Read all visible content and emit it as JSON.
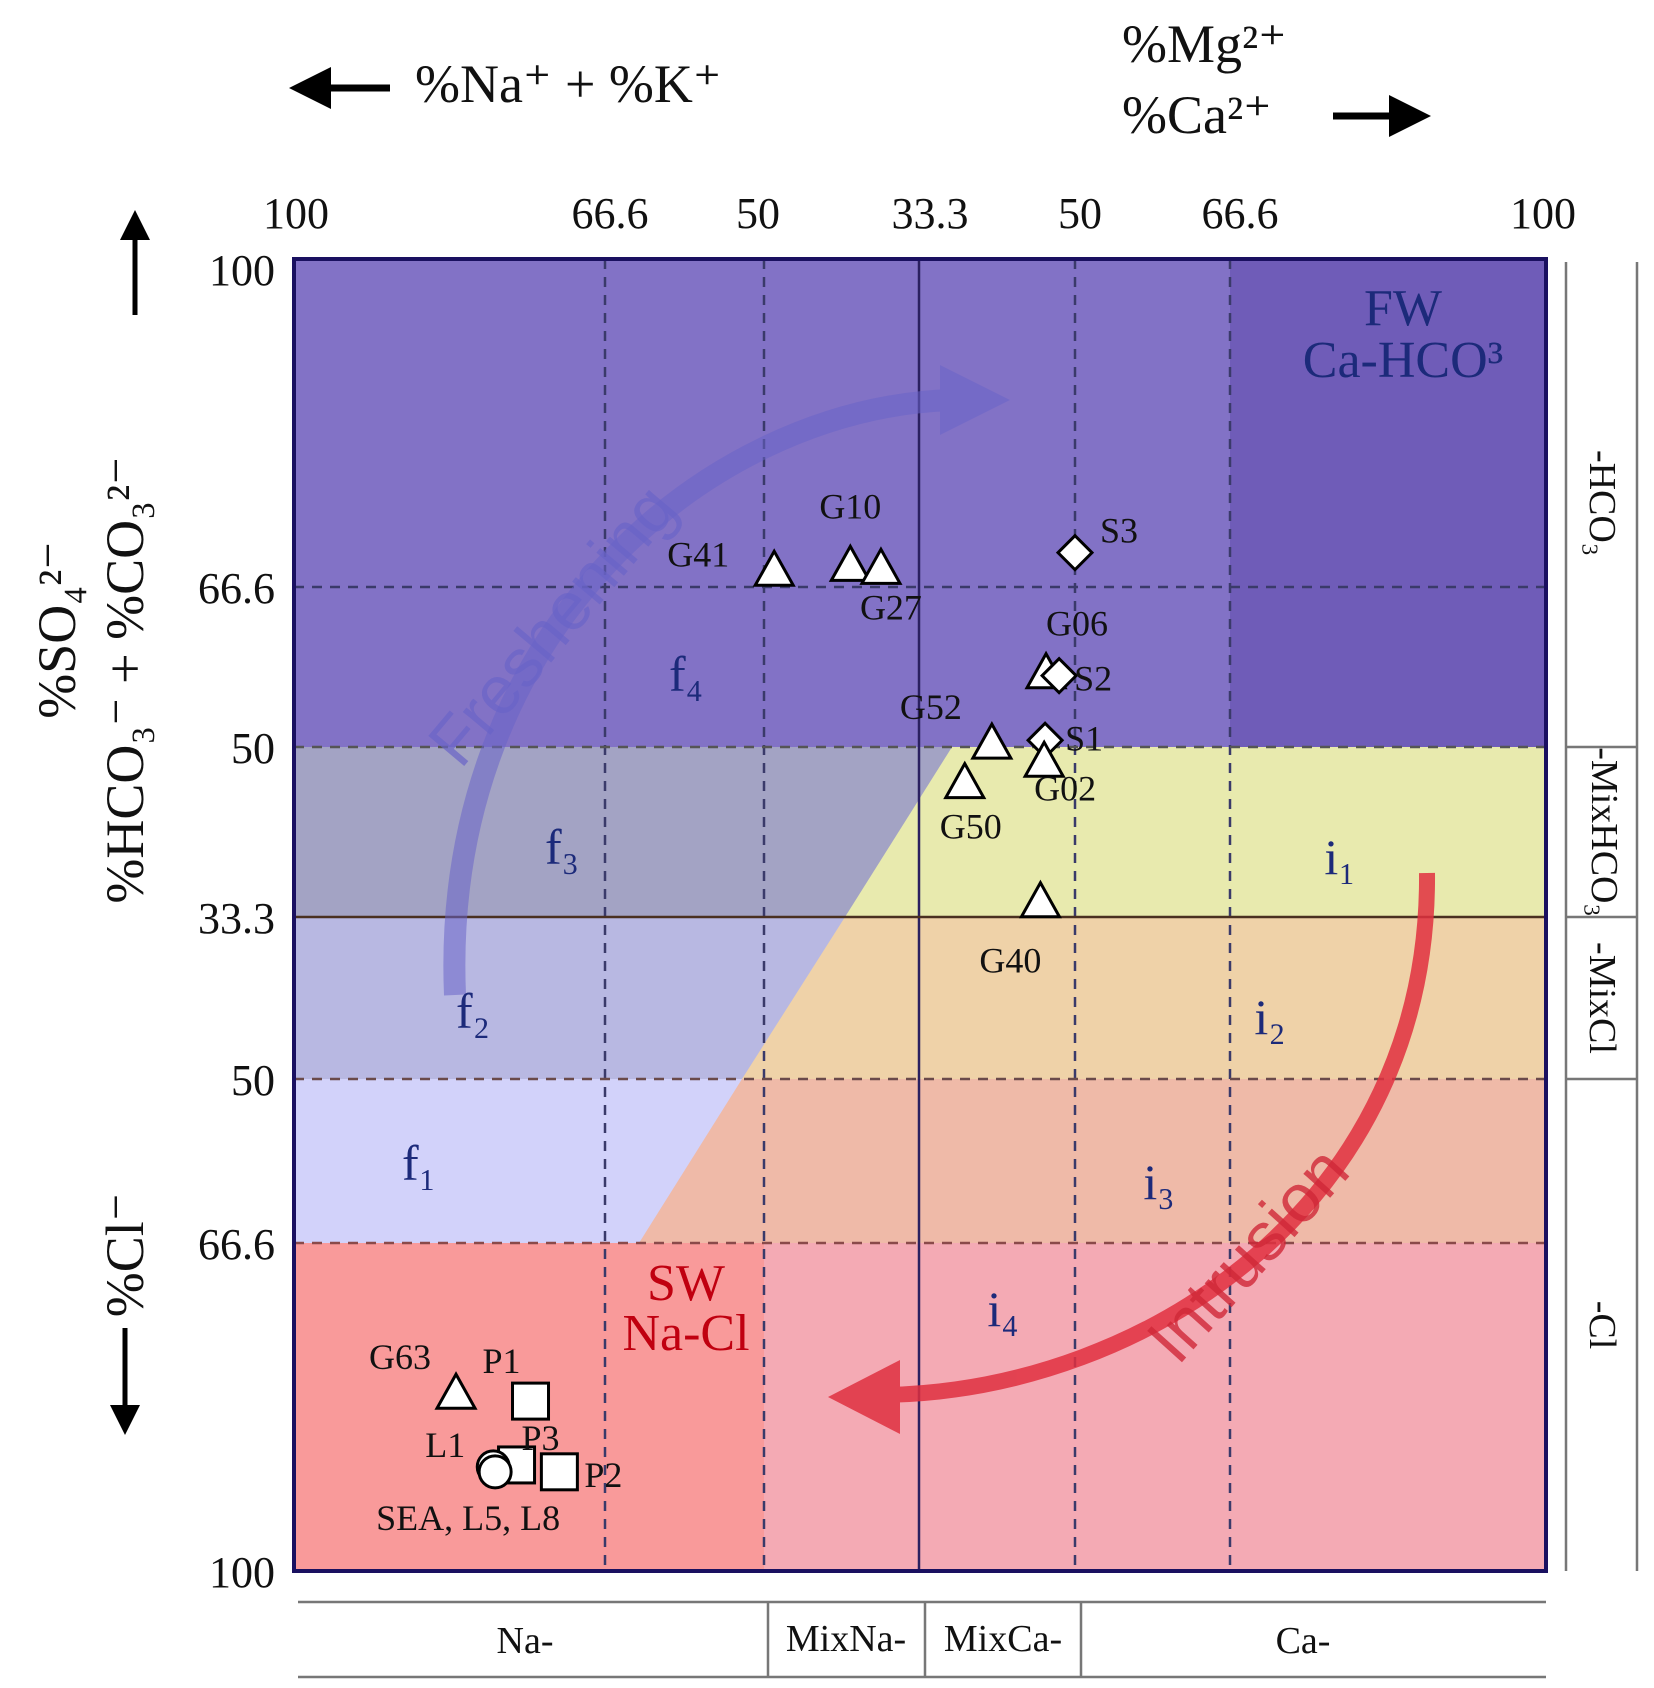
{
  "chart_data": {
    "type": "scatter",
    "x_axis": {
      "label_left": "%Na⁺ + %K⁺",
      "label_right_top": "%Mg²⁺",
      "label_right_bottom": "%Ca²⁺",
      "tick_labels": [
        "100",
        "66.6",
        "50",
        "33.3",
        "50",
        "66.6",
        "100"
      ]
    },
    "y_axis": {
      "label_top_outer": "%SO₄²⁻",
      "label_top_inner": "%HCO₃⁻ + %CO₃²⁻",
      "label_bottom": "%Cl⁻",
      "tick_labels": [
        "100",
        "66.6",
        "50",
        "33.3",
        "50",
        "66.6",
        "100"
      ]
    },
    "facies_right": [
      "-HCO₃",
      "-MixHCO₃",
      "-MixCl",
      "-Cl"
    ],
    "facies_bottom": [
      "Na-",
      "MixNa-",
      "MixCa-",
      "Ca-"
    ],
    "zones": {
      "fw_line1": "FW",
      "fw_line2": "Ca-HCO³",
      "sw_line1": "SW",
      "sw_line2": "Na-Cl",
      "f": [
        "f₁",
        "f₂",
        "f₃",
        "f₄"
      ],
      "i": [
        "i₁",
        "i₂",
        "i₃",
        "i₄"
      ]
    },
    "arrows": {
      "freshening": "Freshening",
      "intrusion": "Intrusion"
    },
    "colors": {
      "fw_zone": "#8272c6",
      "fw_corner": "#6f5cb8",
      "f3": "#a3a3c4",
      "f2": "#b8b8e2",
      "f1": "#d2d2fa",
      "i1": "#e8eaae",
      "i2": "#efd2a8",
      "i3": "#efbaa8",
      "sw_zone": "#f99a9a",
      "i4": "#f4aab4",
      "freshening_arrow": "#6a64c8",
      "intrusion_arrow": "#e03040",
      "zone_text_blue": "#1c2a7a",
      "zone_text_red": "#c00010"
    },
    "mixing_line": {
      "from": "SEA",
      "to": "S3"
    },
    "points": [
      {
        "label": "G41",
        "marker": "triangle",
        "cation": "Na+K",
        "x": 48.9,
        "anion": "HCO3+CO3",
        "y": 68.2
      },
      {
        "label": "G10",
        "marker": "triangle",
        "cation": "Na+K",
        "x": 40.7,
        "anion": "HCO3+CO3",
        "y": 68.7
      },
      {
        "label": "G27",
        "marker": "triangle",
        "cation": "Na+K",
        "x": 37.4,
        "anion": "HCO3+CO3",
        "y": 68.4
      },
      {
        "label": "S3",
        "marker": "diamond",
        "cation": "Ca+Mg",
        "x": 50.0,
        "anion": "HCO3+CO3",
        "y": 70.1
      },
      {
        "label": "G06",
        "marker": "triangle",
        "cation": "Ca+Mg",
        "x": 46.9,
        "anion": "HCO3+CO3",
        "y": 57.6
      },
      {
        "label": "S2",
        "marker": "diamond",
        "cation": "Ca+Mg",
        "x": 48.3,
        "anion": "HCO3+CO3",
        "y": 57.4
      },
      {
        "label": "G52",
        "marker": "triangle",
        "cation": "Ca+Mg",
        "x": 41.1,
        "anion": "HCO3+CO3",
        "y": 50.3
      },
      {
        "label": "S1",
        "marker": "diamond",
        "cation": "Ca+Mg",
        "x": 46.8,
        "anion": "HCO3+CO3",
        "y": 50.7
      },
      {
        "label": "G02",
        "marker": "triangle",
        "cation": "Ca+Mg",
        "x": 46.7,
        "anion": "HCO3+CO3",
        "y": 48.5
      },
      {
        "label": "G50",
        "marker": "triangle",
        "cation": "Ca+Mg",
        "x": 38.2,
        "anion": "HCO3+CO3",
        "y": 46.4
      },
      {
        "label": "G40",
        "marker": "triangle",
        "cation": "Ca+Mg",
        "x": 46.3,
        "anion": "HCO3+CO3",
        "y": 34.7
      },
      {
        "label": "G63",
        "marker": "triangle",
        "cation": "Na+K",
        "x": 82.6,
        "anion": "Cl",
        "y": 82.0
      },
      {
        "label": "P1",
        "marker": "square",
        "cation": "Na+K",
        "x": 74.6,
        "anion": "Cl",
        "y": 82.7
      },
      {
        "label": "P3",
        "marker": "square",
        "cation": "Na+K",
        "x": 76.1,
        "anion": "Cl",
        "y": 89.2
      },
      {
        "label": "P2",
        "marker": "square",
        "cation": "Na+K",
        "x": 71.5,
        "anion": "Cl",
        "y": 89.9
      },
      {
        "label": "L1",
        "marker": "circle",
        "cation": "Na+K",
        "x": 78.6,
        "anion": "Cl",
        "y": 89.4
      },
      {
        "label": "SEA, L5, L8",
        "marker": "circle",
        "cation": "Na+K",
        "x": 78.4,
        "anion": "Cl",
        "y": 89.9
      }
    ]
  }
}
